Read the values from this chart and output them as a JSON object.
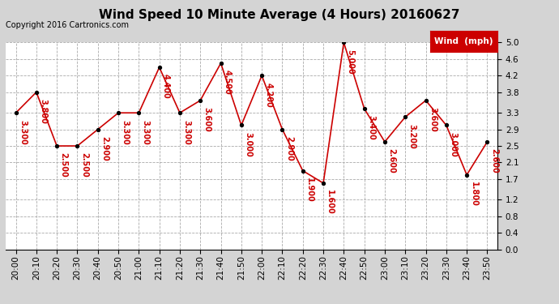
{
  "title": "Wind Speed 10 Minute Average (4 Hours) 20160627",
  "copyright": "Copyright 2016 Cartronics.com",
  "legend_label": "Wind  (mph)",
  "times": [
    "20:00",
    "20:10",
    "20:20",
    "20:30",
    "20:40",
    "20:50",
    "21:00",
    "21:10",
    "21:20",
    "21:30",
    "21:40",
    "21:50",
    "22:00",
    "22:10",
    "22:20",
    "22:30",
    "22:40",
    "22:50",
    "23:00",
    "23:10",
    "23:20",
    "23:30",
    "23:40",
    "23:50"
  ],
  "values": [
    3.3,
    3.8,
    2.5,
    2.5,
    2.9,
    3.3,
    3.3,
    4.4,
    3.3,
    3.6,
    4.5,
    3.0,
    4.2,
    2.9,
    1.9,
    1.6,
    5.0,
    3.4,
    2.6,
    3.2,
    3.6,
    3.0,
    1.8,
    2.6
  ],
  "ylim": [
    0.0,
    5.0
  ],
  "yticks": [
    0.0,
    0.4,
    0.8,
    1.2,
    1.7,
    2.1,
    2.5,
    2.9,
    3.3,
    3.8,
    4.2,
    4.6,
    5.0
  ],
  "line_color": "#cc0000",
  "marker_color": "#000000",
  "bg_color": "#d4d4d4",
  "plot_bg_color": "#ffffff",
  "title_color": "#000000",
  "label_color": "#cc0000",
  "legend_bg": "#cc0000",
  "legend_text": "#ffffff",
  "title_fontsize": 11,
  "label_fontsize": 7,
  "tick_fontsize": 7.5
}
